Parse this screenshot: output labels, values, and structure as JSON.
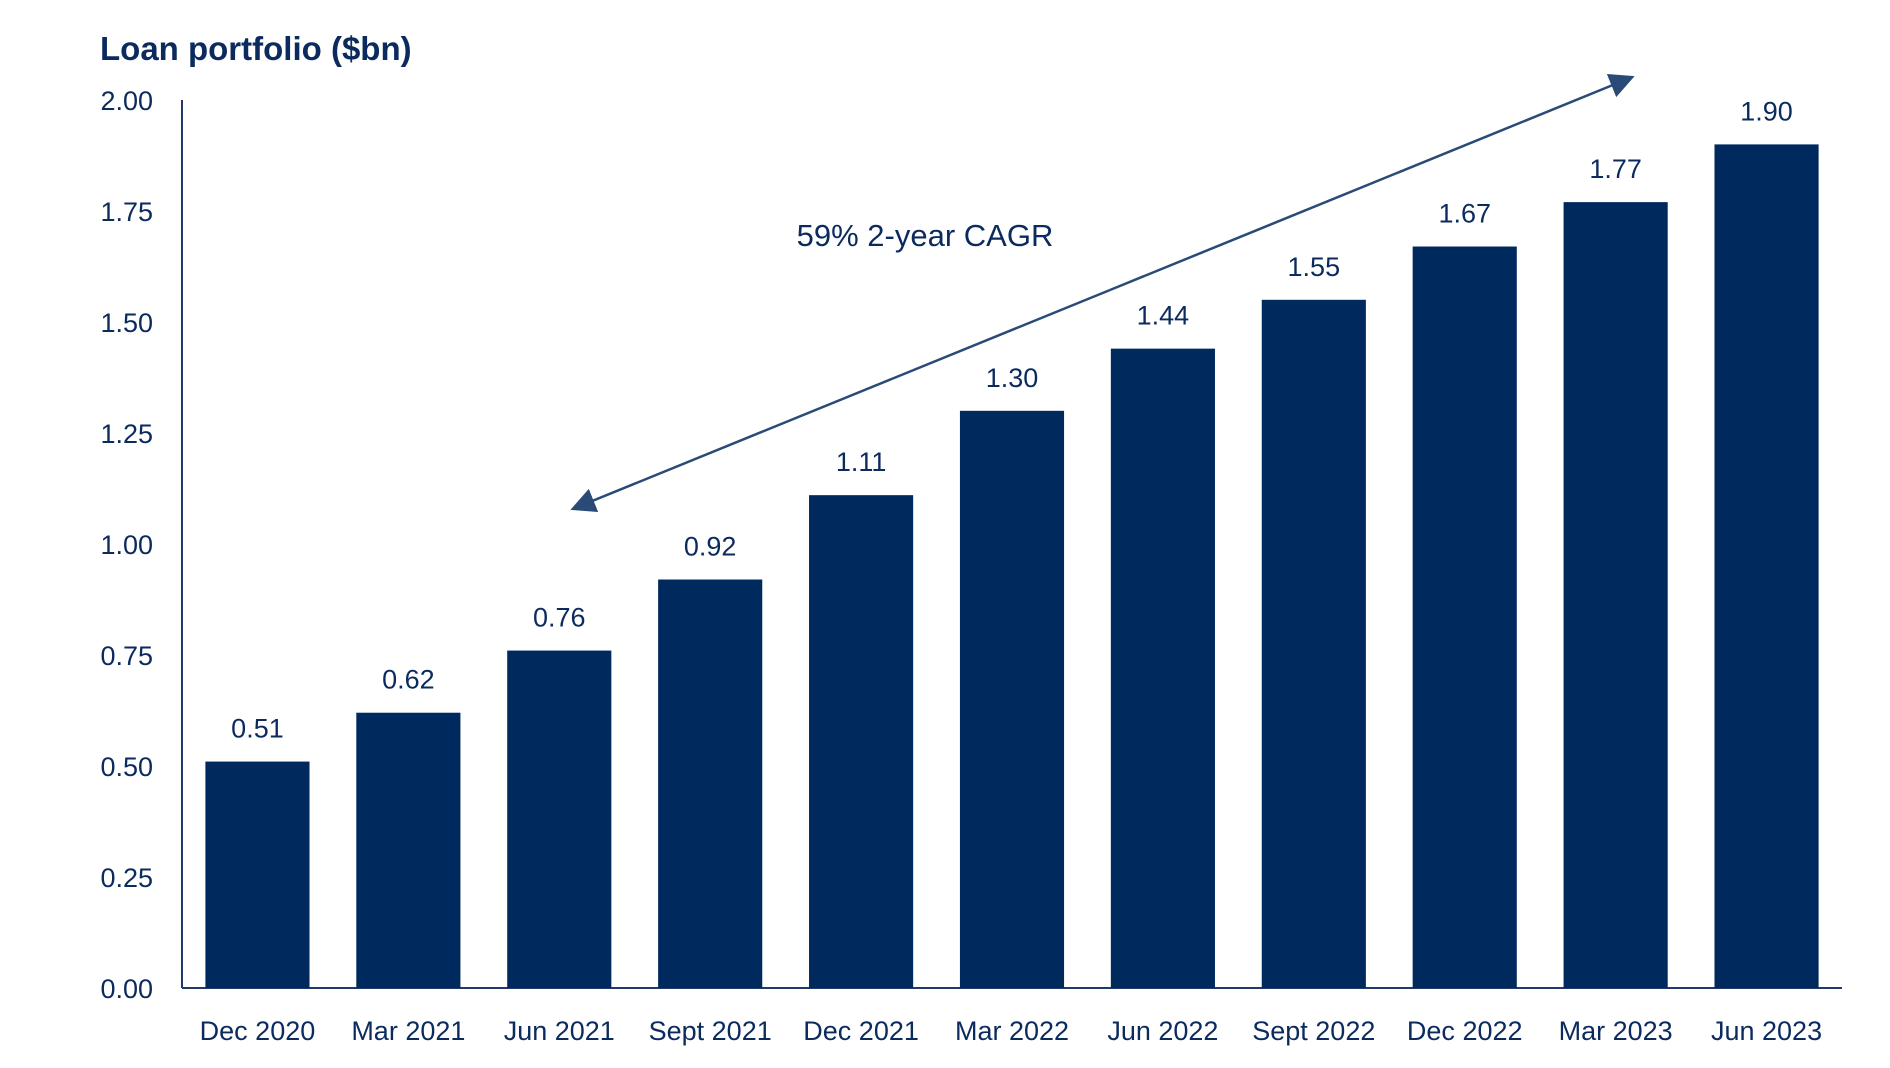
{
  "chart_data": {
    "type": "bar",
    "title": "Loan portfolio ($bn)",
    "xlabel": "",
    "ylabel": "",
    "categories": [
      "Dec 2020",
      "Mar 2021",
      "Jun 2021",
      "Sept 2021",
      "Dec 2021",
      "Mar 2022",
      "Jun 2022",
      "Sept 2022",
      "Dec 2022",
      "Mar 2023",
      "Jun 2023"
    ],
    "values": [
      0.51,
      0.62,
      0.76,
      0.92,
      1.11,
      1.3,
      1.44,
      1.55,
      1.67,
      1.77,
      1.9
    ],
    "data_labels": [
      "0.51",
      "0.62",
      "0.76",
      "0.92",
      "1.11",
      "1.30",
      "1.44",
      "1.55",
      "1.67",
      "1.77",
      "1.90"
    ],
    "ylim": [
      0,
      2.0
    ],
    "yticks": [
      "0.00",
      "0.25",
      "0.50",
      "0.75",
      "1.00",
      "1.25",
      "1.50",
      "1.75",
      "2.00"
    ],
    "grid": false,
    "legend": "none",
    "annotation": "59% 2-year CAGR",
    "colors": {
      "bar": "#002a5e",
      "text": "#0b2a5e",
      "axis": "#1f3a66",
      "arrow": "#2a4a78"
    }
  }
}
